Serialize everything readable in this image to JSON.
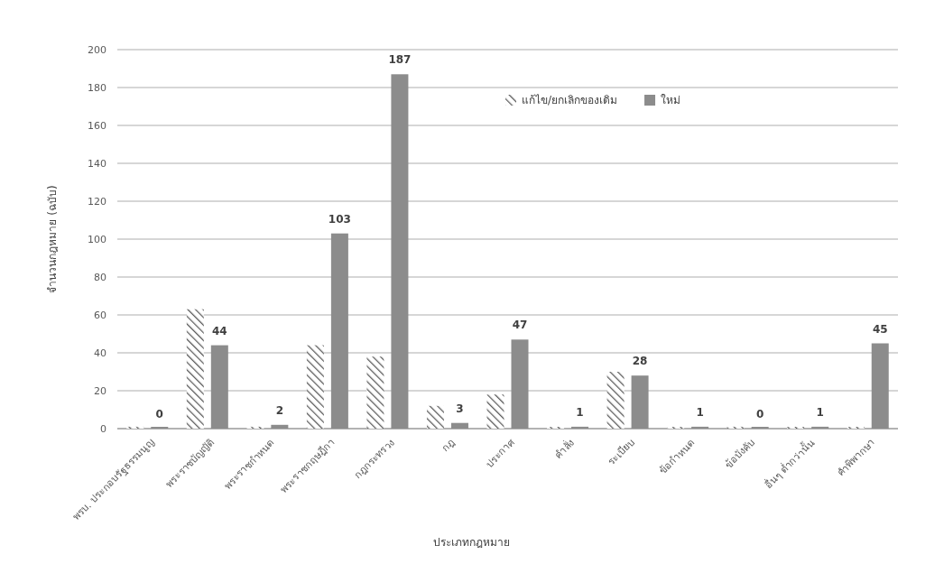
{
  "chart_data": {
    "type": "bar",
    "categories": [
      "พรบ. ประกอบรัฐธรรมนูญ",
      "พระราชบัญญัติ",
      "พระราชกำหนด",
      "พระราชกฤษฎีกา",
      "กฎกระทรวง",
      "กฎ",
      "ประกาศ",
      "คำสั่ง",
      "ระเบียบ",
      "ข้อกำหนด",
      "ข้อบังคับ",
      "อื่นๆ ต่ำกว่านั้น",
      "คำพิพากษา"
    ],
    "series": [
      {
        "name": "แก้ไข/ยกเลิกของเดิม",
        "color": "#595959",
        "values": [
          1,
          63,
          1,
          44,
          38,
          12,
          18,
          0,
          30,
          0,
          1,
          0,
          0
        ]
      },
      {
        "name": "ใหม่",
        "color": "#8c8c8c",
        "values": [
          0,
          44,
          2,
          103,
          187,
          3,
          47,
          1,
          28,
          1,
          0,
          1,
          45
        ],
        "value_labels": [
          "0",
          "44",
          "2",
          "103",
          "187",
          "3",
          "47",
          "1",
          "28",
          "1",
          "0",
          "1",
          "45"
        ]
      }
    ],
    "xlabel": "ประเภทกฎหมาย",
    "ylabel": "จำนวนกฎหมาย (ฉบับ)",
    "ylim": [
      0,
      200
    ],
    "yticks": [
      0,
      20,
      40,
      60,
      80,
      100,
      120,
      140,
      160,
      180,
      200
    ],
    "grid": "y",
    "legend": "top right"
  }
}
